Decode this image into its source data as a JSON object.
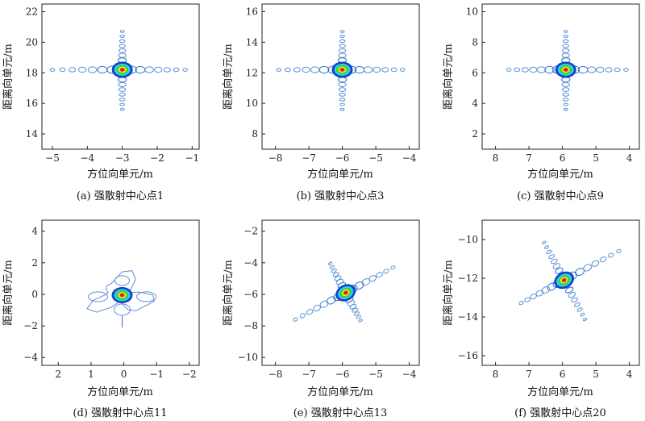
{
  "chart_data": [
    {
      "id": "a",
      "type": "contour",
      "caption": "(a) 强散射中心点1",
      "xlabel": "方位向单元/m",
      "ylabel": "距离向单元/m",
      "xticks": [
        -5,
        -4,
        -3,
        -2,
        -1
      ],
      "xlim": [
        -5.3,
        -0.8
      ],
      "xinvert": false,
      "yticks": [
        14,
        16,
        18,
        20,
        22
      ],
      "ylim": [
        13.0,
        22.5
      ],
      "peak": {
        "x": -3.0,
        "y": 18.2
      },
      "shape": "cross",
      "arm_x_extent": [
        -5.0,
        -1.2
      ],
      "arm_y_extent": [
        15.6,
        20.7
      ]
    },
    {
      "id": "b",
      "type": "contour",
      "caption": "(b) 强散射中心点3",
      "xlabel": "方位向单元/m",
      "ylabel": "距离向单元/m",
      "xticks": [
        -8,
        -7,
        -6,
        -5,
        -4
      ],
      "xlim": [
        -8.4,
        -3.7
      ],
      "xinvert": false,
      "yticks": [
        8,
        10,
        12,
        14,
        16
      ],
      "ylim": [
        7.0,
        16.5
      ],
      "peak": {
        "x": -6.0,
        "y": 12.2
      },
      "shape": "cross",
      "arm_x_extent": [
        -7.9,
        -4.2
      ],
      "arm_y_extent": [
        9.6,
        14.7
      ]
    },
    {
      "id": "c",
      "type": "contour",
      "caption": "(c) 强散射中心点9",
      "xlabel": "方位向单元/m",
      "ylabel": "距离向单元/m",
      "xticks": [
        8,
        7,
        6,
        5,
        4
      ],
      "xlim": [
        8.4,
        3.7
      ],
      "xinvert": true,
      "yticks": [
        2,
        4,
        6,
        8,
        10
      ],
      "ylim": [
        1.0,
        10.5
      ],
      "peak": {
        "x": 5.9,
        "y": 6.2
      },
      "shape": "cross",
      "arm_x_extent": [
        7.6,
        4.1
      ],
      "arm_y_extent": [
        3.6,
        8.7
      ]
    },
    {
      "id": "d",
      "type": "contour",
      "caption": "(d) 强散射中心点11",
      "xlabel": "方位向单元/m",
      "ylabel": "距离向单元/m",
      "xticks": [
        2,
        1,
        0,
        -1,
        -2
      ],
      "xlim": [
        2.5,
        -2.3
      ],
      "xinvert": true,
      "yticks": [
        -4,
        -2,
        0,
        2,
        4
      ],
      "ylim": [
        -4.5,
        4.7
      ],
      "peak": {
        "x": 0.05,
        "y": -0.05
      },
      "shape": "blob",
      "arm_x_extent": [
        1.1,
        -1.1
      ],
      "arm_y_extent": [
        -2.1,
        1.4
      ]
    },
    {
      "id": "e",
      "type": "contour",
      "caption": "(e) 强散射中心点13",
      "xlabel": "方位向单元/m",
      "ylabel": "距离向单元/m",
      "xticks": [
        -8,
        -7,
        -6,
        -5,
        -4
      ],
      "xlim": [
        -8.4,
        -3.7
      ],
      "xinvert": false,
      "yticks": [
        -10,
        -8,
        -6,
        -4,
        -2
      ],
      "ylim": [
        -10.5,
        -1.3
      ],
      "peak": {
        "x": -5.9,
        "y": -5.9
      },
      "shape": "tilted-cross",
      "arm_x_extent": [
        -7.6,
        -4.3
      ],
      "arm_y_extent": [
        -7.9,
        -3.8
      ]
    },
    {
      "id": "f",
      "type": "contour",
      "caption": "(f) 强散射中心点20",
      "xlabel": "方位向单元/m",
      "ylabel": "距离向单元/m",
      "xticks": [
        8,
        7,
        6,
        5,
        4
      ],
      "xlim": [
        8.4,
        3.7
      ],
      "xinvert": true,
      "yticks": [
        -16,
        -14,
        -12,
        -10
      ],
      "ylim": [
        -16.5,
        -9.0
      ],
      "peak": {
        "x": 5.95,
        "y": -12.1
      },
      "shape": "tilted-cross",
      "arm_x_extent": [
        7.4,
        4.1
      ],
      "arm_y_extent": [
        -14.4,
        -9.9
      ]
    }
  ],
  "colors": {
    "axis": "#222222",
    "contour_outer": "#5b8fd6",
    "contour_mid": "#2f6fd0",
    "core_blue": "#1640c8",
    "core_cyan": "#27d6e6",
    "core_green": "#3ad13a",
    "core_yellow": "#f4e81c",
    "core_red": "#d92020"
  }
}
